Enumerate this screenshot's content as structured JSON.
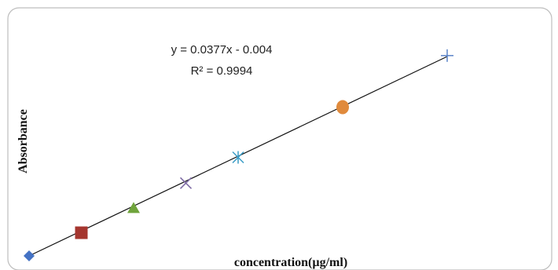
{
  "chart_data": {
    "type": "scatter",
    "xlabel": "concentration(µg/ml)",
    "ylabel": "Absorbance",
    "trendline": {
      "equation": "y = 0.0377x - 0.004",
      "r_squared": "R² = 0.9994",
      "slope": 0.0377,
      "intercept": -0.004
    },
    "xlim": [
      0,
      8.4
    ],
    "ylim": [
      0,
      0.3
    ],
    "grid": false,
    "legend": "none",
    "series": [
      {
        "x": 0,
        "y": -0.004,
        "marker": "diamond",
        "color": "#4472C4"
      },
      {
        "x": 1,
        "y": 0.031,
        "marker": "square",
        "color": "#A5362F"
      },
      {
        "x": 2,
        "y": 0.068,
        "marker": "triangle",
        "color": "#70A43C"
      },
      {
        "x": 3,
        "y": 0.106,
        "marker": "x",
        "color": "#7E6BA5"
      },
      {
        "x": 4,
        "y": 0.145,
        "marker": "star",
        "color": "#3A9CC6"
      },
      {
        "x": 6,
        "y": 0.221,
        "marker": "circle",
        "color": "#E08A3C"
      },
      {
        "x": 8,
        "y": 0.299,
        "marker": "plus",
        "color": "#5B84C9"
      }
    ]
  }
}
